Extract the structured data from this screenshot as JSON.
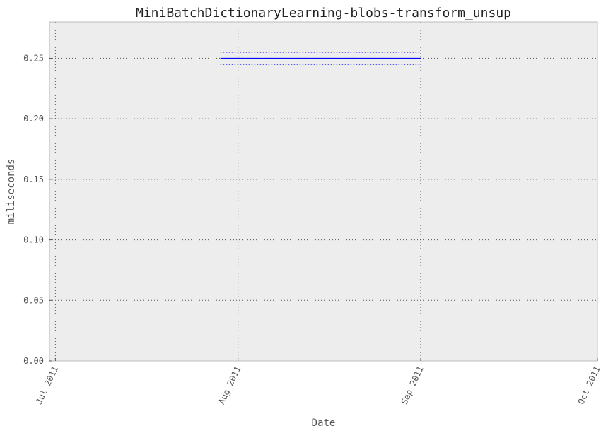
{
  "chart_data": {
    "type": "line",
    "title": "MiniBatchDictionaryLearning-blobs-transform_unsup",
    "xlabel": "Date",
    "ylabel": "miliseconds",
    "x_tick_labels": [
      "Jul 2011",
      "Aug 2011",
      "Sep 2011",
      "Oct 2011"
    ],
    "x_ticks": [
      "2011-07-01",
      "2011-08-01",
      "2011-09-01",
      "2011-10-01"
    ],
    "xlim": [
      "2011-06-30",
      "2011-10-01"
    ],
    "y_tick_labels": [
      "0.00",
      "0.05",
      "0.10",
      "0.15",
      "0.20",
      "0.25"
    ],
    "y_ticks": [
      0.0,
      0.05,
      0.1,
      0.15,
      0.2,
      0.25
    ],
    "ylim": [
      0.0,
      0.28
    ],
    "grid": true,
    "series": [
      {
        "x": [
          "2011-07-29",
          "2011-09-01"
        ],
        "values": [
          0.25,
          0.25
        ],
        "style": "solid",
        "color": "#0000ff"
      },
      {
        "x": [
          "2011-07-29",
          "2011-09-01"
        ],
        "values": [
          0.255,
          0.255
        ],
        "style": "dotted",
        "color": "#0000ff"
      },
      {
        "x": [
          "2011-07-29",
          "2011-09-01"
        ],
        "values": [
          0.245,
          0.245
        ],
        "style": "dotted",
        "color": "#0000ff"
      }
    ],
    "colors": {
      "plot_background": "#ededed",
      "grid": "#555555",
      "frame": "#bcbcbc"
    }
  }
}
